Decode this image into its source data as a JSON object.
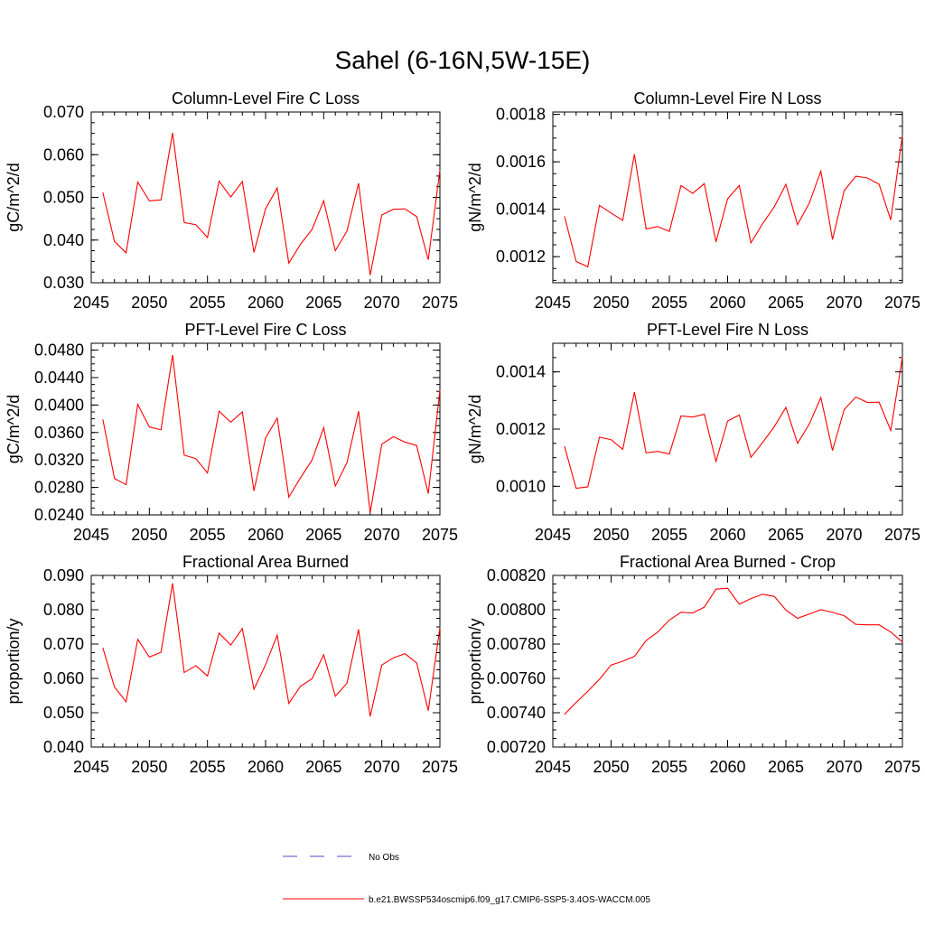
{
  "figure": {
    "title": "Sahel (6-16N,5W-15E)"
  },
  "legend": {
    "items": [
      {
        "label": "No Obs",
        "color": "#4a4ad6",
        "style": "dashed"
      },
      {
        "label": "b.e21.BWSSP534oscmip6.f09_g17.CMIP6-SSP5-3.4OS-WACCM.005",
        "color": "#ff0000",
        "style": "solid"
      }
    ]
  },
  "chart_data": [
    {
      "type": "line",
      "title": "Column-Level Fire C Loss",
      "xlabel": "",
      "ylabel": "gC/m^2/d",
      "xlim": [
        2045,
        2075
      ],
      "ylim": [
        0.03,
        0.07
      ],
      "xticks": [
        "2045",
        "2050",
        "2055",
        "2060",
        "2065",
        "2070",
        "2075"
      ],
      "yticks": [
        "0.030",
        "0.040",
        "0.050",
        "0.060",
        "0.070"
      ],
      "x": [
        2046,
        2047,
        2048,
        2049,
        2050,
        2051,
        2052,
        2053,
        2054,
        2055,
        2056,
        2057,
        2058,
        2059,
        2060,
        2061,
        2062,
        2063,
        2064,
        2065,
        2066,
        2067,
        2068,
        2069,
        2070,
        2071,
        2072,
        2073,
        2074,
        2075
      ],
      "series": [
        {
          "color": "#ff0000",
          "values": [
            0.0511,
            0.0397,
            0.037,
            0.0536,
            0.0492,
            0.0494,
            0.0651,
            0.0441,
            0.0436,
            0.0406,
            0.0538,
            0.0501,
            0.0537,
            0.0371,
            0.0473,
            0.0522,
            0.0346,
            0.039,
            0.0425,
            0.0492,
            0.0375,
            0.0421,
            0.0533,
            0.0318,
            0.0459,
            0.0472,
            0.0473,
            0.0455,
            0.0354,
            0.0565
          ]
        }
      ]
    },
    {
      "type": "line",
      "title": "Column-Level Fire N Loss",
      "xlabel": "",
      "ylabel": "gN/m^2/d",
      "xlim": [
        2045,
        2075
      ],
      "ylim": [
        0.00109,
        0.00181
      ],
      "xticks": [
        "2045",
        "2050",
        "2055",
        "2060",
        "2065",
        "2070",
        "2075"
      ],
      "yticks": [
        "0.0012",
        "0.0014",
        "0.0016",
        "0.0018"
      ],
      "ytick_values": [
        0.0012,
        0.0014,
        0.0016,
        0.0018
      ],
      "x": [
        2046,
        2047,
        2048,
        2049,
        2050,
        2051,
        2052,
        2053,
        2054,
        2055,
        2056,
        2057,
        2058,
        2059,
        2060,
        2061,
        2062,
        2063,
        2064,
        2065,
        2066,
        2067,
        2068,
        2069,
        2070,
        2071,
        2072,
        2073,
        2074,
        2075
      ],
      "series": [
        {
          "color": "#ff0000",
          "values": [
            0.00137,
            0.00118,
            0.001157,
            0.001416,
            0.001384,
            0.001353,
            0.001632,
            0.001317,
            0.001327,
            0.001306,
            0.0015,
            0.001467,
            0.001508,
            0.001262,
            0.001444,
            0.0015,
            0.001258,
            0.001339,
            0.00141,
            0.001505,
            0.001335,
            0.001425,
            0.001561,
            0.001272,
            0.001478,
            0.001539,
            0.001532,
            0.001505,
            0.001355,
            0.001712
          ]
        }
      ]
    },
    {
      "type": "line",
      "title": "PFT-Level Fire C Loss",
      "xlabel": "",
      "ylabel": "gC/m^2/d",
      "xlim": [
        2045,
        2075
      ],
      "ylim": [
        0.024,
        0.049
      ],
      "xticks": [
        "2045",
        "2050",
        "2055",
        "2060",
        "2065",
        "2070",
        "2075"
      ],
      "yticks": [
        "0.0240",
        "0.0280",
        "0.0320",
        "0.0360",
        "0.0400",
        "0.0440",
        "0.0480"
      ],
      "ytick_values": [
        0.024,
        0.028,
        0.032,
        0.036,
        0.04,
        0.044,
        0.048
      ],
      "x": [
        2046,
        2047,
        2048,
        2049,
        2050,
        2051,
        2052,
        2053,
        2054,
        2055,
        2056,
        2057,
        2058,
        2059,
        2060,
        2061,
        2062,
        2063,
        2064,
        2065,
        2066,
        2067,
        2068,
        2069,
        2070,
        2071,
        2072,
        2073,
        2074,
        2075
      ],
      "series": [
        {
          "color": "#ff0000",
          "values": [
            0.0379,
            0.0293,
            0.0284,
            0.0401,
            0.0368,
            0.0364,
            0.0473,
            0.0327,
            0.0322,
            0.0301,
            0.0391,
            0.0375,
            0.039,
            0.0275,
            0.0352,
            0.0381,
            0.0266,
            0.0294,
            0.032,
            0.0367,
            0.0282,
            0.0316,
            0.0391,
            0.0243,
            0.0343,
            0.0354,
            0.0346,
            0.0341,
            0.0271,
            0.0422
          ]
        }
      ]
    },
    {
      "type": "line",
      "title": "PFT-Level Fire N Loss",
      "xlabel": "",
      "ylabel": "gN/m^2/d",
      "xlim": [
        2045,
        2075
      ],
      "ylim": [
        0.0009,
        0.0015
      ],
      "xticks": [
        "2045",
        "2050",
        "2055",
        "2060",
        "2065",
        "2070",
        "2075"
      ],
      "yticks": [
        "0.0010",
        "0.0012",
        "0.0014"
      ],
      "ytick_values": [
        0.001,
        0.0012,
        0.0014
      ],
      "x": [
        2046,
        2047,
        2048,
        2049,
        2050,
        2051,
        2052,
        2053,
        2054,
        2055,
        2056,
        2057,
        2058,
        2059,
        2060,
        2061,
        2062,
        2063,
        2064,
        2065,
        2066,
        2067,
        2068,
        2069,
        2070,
        2071,
        2072,
        2073,
        2074,
        2075
      ],
      "series": [
        {
          "color": "#ff0000",
          "values": [
            0.00114,
            0.000993,
            0.000998,
            0.001172,
            0.001163,
            0.001129,
            0.001329,
            0.001117,
            0.001122,
            0.001113,
            0.001246,
            0.001242,
            0.001252,
            0.001087,
            0.001228,
            0.001249,
            0.001101,
            0.001153,
            0.001208,
            0.001276,
            0.00115,
            0.001217,
            0.00131,
            0.001125,
            0.001268,
            0.001312,
            0.001293,
            0.001294,
            0.001195,
            0.001452
          ]
        }
      ]
    },
    {
      "type": "line",
      "title": "Fractional Area Burned",
      "xlabel": "",
      "ylabel": "proportion/y",
      "xlim": [
        2045,
        2075
      ],
      "ylim": [
        0.04,
        0.09
      ],
      "xticks": [
        "2045",
        "2050",
        "2055",
        "2060",
        "2065",
        "2070",
        "2075"
      ],
      "yticks": [
        "0.040",
        "0.050",
        "0.060",
        "0.070",
        "0.080",
        "0.090"
      ],
      "x": [
        2046,
        2047,
        2048,
        2049,
        2050,
        2051,
        2052,
        2053,
        2054,
        2055,
        2056,
        2057,
        2058,
        2059,
        2060,
        2061,
        2062,
        2063,
        2064,
        2065,
        2066,
        2067,
        2068,
        2069,
        2070,
        2071,
        2072,
        2073,
        2074,
        2075
      ],
      "series": [
        {
          "color": "#ff0000",
          "values": [
            0.0689,
            0.0575,
            0.0532,
            0.0714,
            0.0662,
            0.0676,
            0.0877,
            0.0617,
            0.0637,
            0.0607,
            0.0732,
            0.0697,
            0.0745,
            0.0568,
            0.064,
            0.0726,
            0.0527,
            0.0577,
            0.0599,
            0.0669,
            0.0548,
            0.0586,
            0.0743,
            0.0489,
            0.0639,
            0.066,
            0.0672,
            0.0645,
            0.0506,
            0.0749
          ]
        }
      ]
    },
    {
      "type": "line",
      "title": "Fractional Area Burned - Crop",
      "xlabel": "",
      "ylabel": "proportion/y",
      "xlim": [
        2045,
        2075
      ],
      "ylim": [
        0.0072,
        0.0082
      ],
      "xticks": [
        "2045",
        "2050",
        "2055",
        "2060",
        "2065",
        "2070",
        "2075"
      ],
      "yticks": [
        "0.00720",
        "0.00740",
        "0.00760",
        "0.00780",
        "0.00800",
        "0.00820"
      ],
      "ytick_values": [
        0.0072,
        0.0074,
        0.0076,
        0.0078,
        0.008,
        0.0082
      ],
      "x": [
        2046,
        2047,
        2048,
        2049,
        2050,
        2051,
        2052,
        2053,
        2054,
        2055,
        2056,
        2057,
        2058,
        2059,
        2060,
        2061,
        2062,
        2063,
        2064,
        2065,
        2066,
        2067,
        2068,
        2069,
        2070,
        2071,
        2072,
        2073,
        2074,
        2075
      ],
      "series": [
        {
          "color": "#ff0000",
          "values": [
            0.00739,
            0.00746,
            0.007525,
            0.007595,
            0.007678,
            0.0077,
            0.007728,
            0.00782,
            0.00787,
            0.00794,
            0.007985,
            0.007981,
            0.008015,
            0.00812,
            0.008125,
            0.008032,
            0.008065,
            0.00809,
            0.008078,
            0.007998,
            0.00795,
            0.007975,
            0.008,
            0.007985,
            0.007965,
            0.007915,
            0.007912,
            0.007912,
            0.00787,
            0.007812
          ]
        }
      ]
    }
  ]
}
